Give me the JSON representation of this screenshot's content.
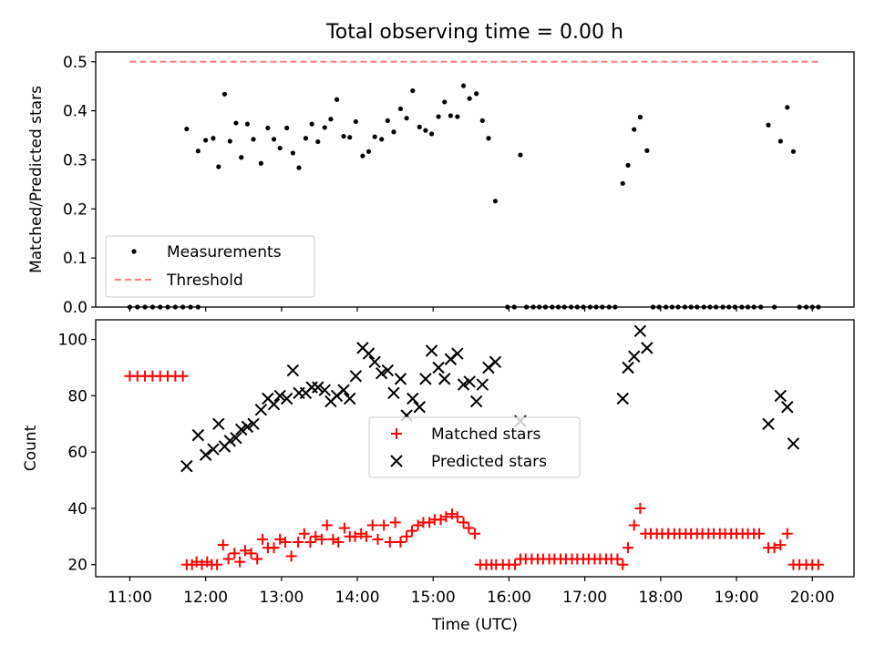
{
  "chart_data": [
    {
      "type": "scatter",
      "title": "Total observing time = 0.00 h",
      "ylabel": "Matched/Predicted stars",
      "ylim": [
        0,
        0.52
      ],
      "yticks": [
        0.0,
        0.1,
        0.2,
        0.3,
        0.4,
        0.5
      ],
      "ytick_labels": [
        "0.0",
        "0.1",
        "0.2",
        "0.3",
        "0.4",
        "0.5"
      ],
      "xlim": [
        10.55,
        20.55
      ],
      "legend": {
        "placement": "lower-left",
        "entries": [
          "Measurements",
          "Threshold"
        ]
      },
      "colors": {
        "measurements": "#000000",
        "threshold": "#ff7f7f"
      },
      "series": [
        {
          "name": "Measurements",
          "marker": "dot",
          "x": [
            11.0,
            11.1,
            11.2,
            11.3,
            11.4,
            11.5,
            11.6,
            11.7,
            11.8,
            11.9,
            11.75,
            11.9,
            12.0,
            12.1,
            12.17,
            12.25,
            12.32,
            12.4,
            12.47,
            12.55,
            12.63,
            12.73,
            12.82,
            12.9,
            12.98,
            13.07,
            13.15,
            13.23,
            13.32,
            13.4,
            13.48,
            13.57,
            13.65,
            13.73,
            13.82,
            13.9,
            13.98,
            14.07,
            14.15,
            14.23,
            14.32,
            14.4,
            14.48,
            14.57,
            14.65,
            14.73,
            14.82,
            14.9,
            14.98,
            15.07,
            15.15,
            15.23,
            15.32,
            15.4,
            15.48,
            15.57,
            15.65,
            15.73,
            15.82,
            15.98,
            16.07,
            16.15,
            16.23,
            16.32,
            16.4,
            16.48,
            16.57,
            16.65,
            16.73,
            16.82,
            16.9,
            16.98,
            17.07,
            17.15,
            17.23,
            17.32,
            17.4,
            17.5,
            17.57,
            17.65,
            17.73,
            17.82,
            17.9,
            17.98,
            18.07,
            18.15,
            18.23,
            18.32,
            18.4,
            18.48,
            18.57,
            18.65,
            18.73,
            18.82,
            18.9,
            18.98,
            19.07,
            19.15,
            19.23,
            19.32,
            19.42,
            19.5,
            19.58,
            19.67,
            19.75,
            19.83,
            19.92,
            20.0,
            20.08
          ],
          "y": [
            0,
            0,
            0,
            0,
            0,
            0,
            0,
            0,
            0,
            0,
            0.363,
            0.318,
            0.34,
            0.344,
            0.286,
            0.434,
            0.338,
            0.375,
            0.305,
            0.373,
            0.342,
            0.293,
            0.365,
            0.342,
            0.324,
            0.365,
            0.314,
            0.284,
            0.344,
            0.373,
            0.337,
            0.366,
            0.383,
            0.423,
            0.348,
            0.346,
            0.378,
            0.308,
            0.317,
            0.347,
            0.342,
            0.38,
            0.357,
            0.404,
            0.385,
            0.441,
            0.367,
            0.36,
            0.353,
            0.388,
            0.418,
            0.39,
            0.388,
            0.451,
            0.425,
            0.435,
            0.38,
            0.344,
            0.216,
            0.0,
            0.0,
            0.31,
            0,
            0,
            0,
            0,
            0,
            0,
            0,
            0,
            0,
            0,
            0,
            0,
            0,
            0,
            0,
            0.252,
            0.289,
            0.362,
            0.387,
            0.319,
            0,
            0,
            0,
            0,
            0,
            0,
            0,
            0,
            0,
            0,
            0,
            0,
            0,
            0,
            0,
            0,
            0,
            0,
            0.371,
            0,
            0.338,
            0.407,
            0.317,
            0,
            0,
            0,
            0
          ]
        },
        {
          "name": "Threshold",
          "line": "dashed",
          "x": [
            11.0,
            20.08
          ],
          "y": [
            0.5,
            0.5
          ]
        }
      ]
    },
    {
      "type": "scatter",
      "xlabel": "Time (UTC)",
      "ylabel": "Count",
      "ylim": [
        15.7,
        107
      ],
      "xlim": [
        10.55,
        20.55
      ],
      "yticks": [
        20,
        40,
        60,
        80,
        100
      ],
      "ytick_labels": [
        "20",
        "40",
        "60",
        "80",
        "100"
      ],
      "xticks": [
        11,
        12,
        13,
        14,
        15,
        16,
        17,
        18,
        19,
        20
      ],
      "xtick_labels": [
        "11:00",
        "12:00",
        "13:00",
        "14:00",
        "15:00",
        "16:00",
        "17:00",
        "18:00",
        "19:00",
        "20:00"
      ],
      "legend": {
        "placement": "center",
        "entries": [
          "Matched stars",
          "Predicted stars"
        ]
      },
      "colors": {
        "matched": "#ff0000",
        "predicted": "#000000"
      },
      "series": [
        {
          "name": "Matched stars",
          "marker": "plus",
          "x": [
            11.0,
            11.1,
            11.2,
            11.3,
            11.4,
            11.5,
            11.6,
            11.7,
            11.75,
            11.82,
            11.88,
            11.95,
            12.02,
            12.08,
            12.15,
            12.23,
            12.3,
            12.38,
            12.45,
            12.52,
            12.6,
            12.68,
            12.75,
            12.82,
            12.9,
            12.98,
            13.05,
            13.13,
            13.22,
            13.3,
            13.38,
            13.45,
            13.53,
            13.6,
            13.68,
            13.75,
            13.83,
            13.9,
            13.97,
            14.05,
            14.12,
            14.2,
            14.27,
            14.35,
            14.43,
            14.5,
            14.57,
            14.65,
            14.72,
            14.8,
            14.87,
            14.95,
            15.02,
            15.1,
            15.17,
            15.25,
            15.32,
            15.4,
            15.47,
            15.55,
            15.62,
            15.7,
            15.77,
            15.83,
            15.92,
            16.0,
            16.08,
            16.15,
            16.22,
            16.3,
            16.38,
            16.45,
            16.53,
            16.6,
            16.68,
            16.75,
            16.83,
            16.9,
            16.98,
            17.05,
            17.13,
            17.2,
            17.28,
            17.35,
            17.43,
            17.5,
            17.57,
            17.65,
            17.73,
            17.8,
            17.87,
            17.95,
            18.02,
            18.1,
            18.18,
            18.25,
            18.33,
            18.4,
            18.48,
            18.55,
            18.63,
            18.7,
            18.78,
            18.85,
            18.93,
            19.0,
            19.08,
            19.15,
            19.23,
            19.3,
            19.42,
            19.5,
            19.58,
            19.67,
            19.75,
            19.83,
            19.92,
            20.0,
            20.08
          ],
          "y": [
            87,
            87,
            87,
            87,
            87,
            87,
            87,
            87,
            20,
            20,
            21,
            20,
            21,
            20,
            20,
            27,
            22,
            24,
            21,
            25,
            24,
            22,
            29,
            26,
            26,
            29,
            28,
            23,
            28,
            31,
            28,
            30,
            29,
            34,
            29,
            28,
            33,
            30,
            30,
            31,
            30,
            34,
            29,
            34,
            28,
            35,
            28,
            30,
            32,
            34,
            35,
            35,
            36,
            36,
            37,
            38,
            37,
            35,
            33,
            31,
            20,
            20,
            20,
            20,
            20,
            20,
            20,
            22,
            22,
            22,
            22,
            22,
            22,
            22,
            22,
            22,
            22,
            22,
            22,
            22,
            22,
            22,
            22,
            22,
            22,
            20,
            26,
            34,
            40,
            31,
            31,
            31,
            31,
            31,
            31,
            31,
            31,
            31,
            31,
            31,
            31,
            31,
            31,
            31,
            31,
            31,
            31,
            31,
            31,
            31,
            26,
            26,
            27,
            31,
            20,
            20,
            20,
            20,
            20
          ]
        },
        {
          "name": "Predicted stars",
          "marker": "x",
          "x": [
            11.75,
            11.9,
            12.0,
            12.1,
            12.17,
            12.25,
            12.32,
            12.4,
            12.47,
            12.55,
            12.63,
            12.73,
            12.82,
            12.9,
            12.98,
            13.07,
            13.15,
            13.23,
            13.32,
            13.4,
            13.48,
            13.57,
            13.65,
            13.73,
            13.82,
            13.9,
            13.98,
            14.07,
            14.15,
            14.23,
            14.32,
            14.4,
            14.48,
            14.57,
            14.65,
            14.73,
            14.82,
            14.9,
            14.98,
            15.07,
            15.15,
            15.23,
            15.32,
            15.4,
            15.48,
            15.57,
            15.65,
            15.73,
            15.82,
            16.15,
            17.5,
            17.57,
            17.65,
            17.73,
            17.82,
            19.42,
            19.58,
            19.67,
            19.75
          ],
          "y": [
            55,
            66,
            59,
            61,
            70,
            62,
            64,
            65,
            68,
            69,
            70,
            75,
            79,
            77,
            80,
            79,
            89,
            81,
            81,
            83,
            83,
            82,
            78,
            80,
            82,
            79,
            87,
            97,
            95,
            92,
            88,
            89,
            81,
            86,
            73,
            79,
            76,
            86,
            96,
            90,
            86,
            93,
            95,
            84,
            85,
            78,
            84,
            90,
            92,
            71,
            79,
            90,
            94,
            103,
            97,
            70,
            80,
            76,
            63
          ]
        }
      ]
    }
  ]
}
